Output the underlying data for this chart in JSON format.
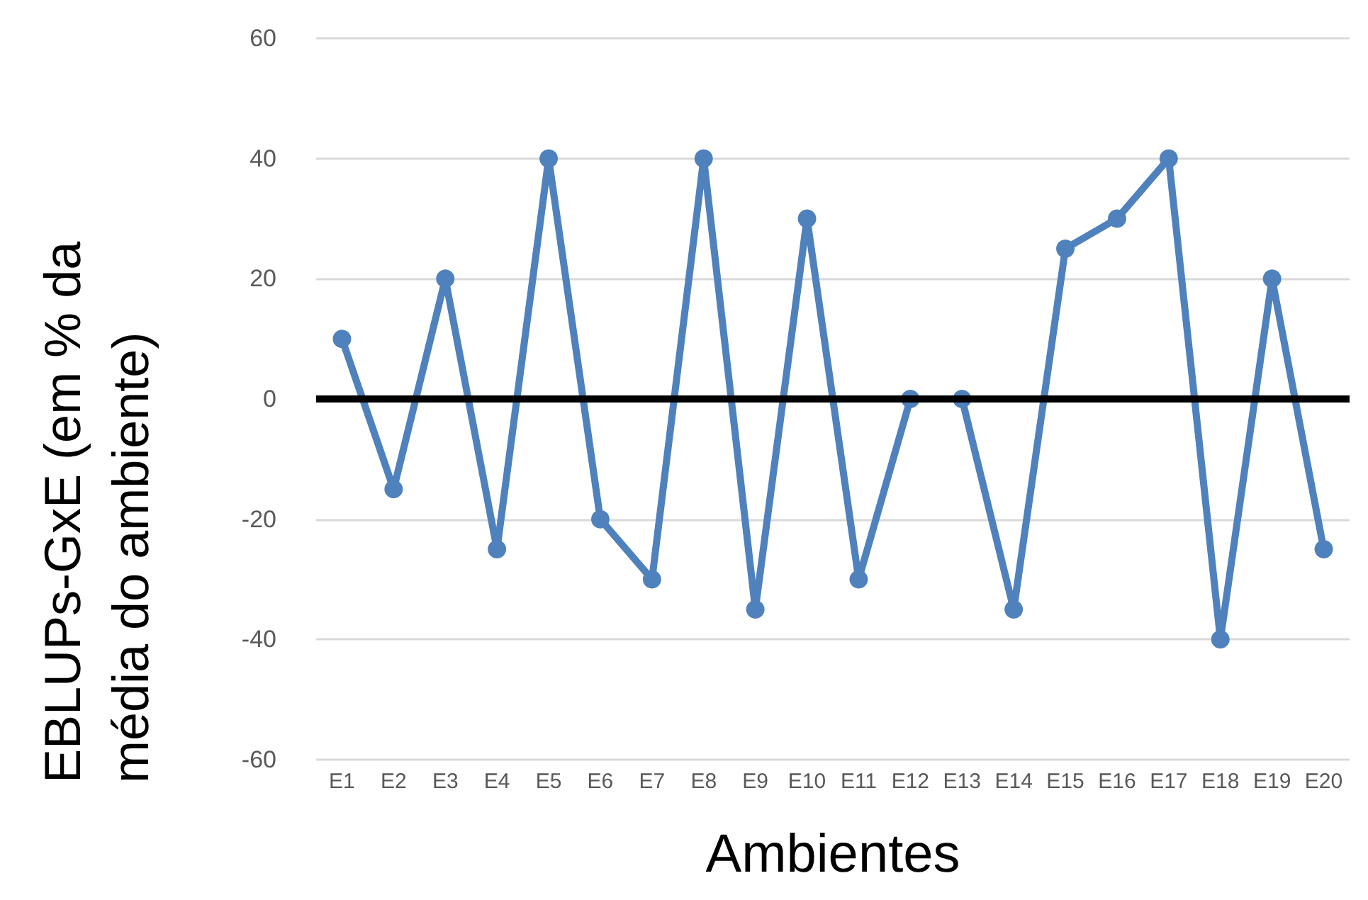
{
  "chart_data": {
    "type": "line",
    "xlabel": "Ambientes",
    "ylabel": "EBLUPs-GxE (em % da média do ambiente)",
    "categories": [
      "E1",
      "E2",
      "E3",
      "E4",
      "E5",
      "E6",
      "E7",
      "E8",
      "E9",
      "E10",
      "E11",
      "E12",
      "E13",
      "E14",
      "E15",
      "E16",
      "E17",
      "E18",
      "E19",
      "E20"
    ],
    "series": [
      {
        "color": "#4f81bd",
        "values": [
          10,
          -15,
          20,
          -25,
          40,
          -20,
          -30,
          40,
          -35,
          30,
          -30,
          0,
          0,
          -35,
          25,
          30,
          40,
          -40,
          20,
          -25
        ]
      }
    ],
    "ylim": [
      -60,
      60
    ],
    "yticks": [
      -60,
      -40,
      -20,
      0,
      20,
      40,
      60
    ],
    "grid": "y",
    "marker": "circle",
    "line_style": "solid",
    "ref_lines": [
      {
        "axis": "y",
        "value": 0,
        "color": "#000000"
      }
    ]
  }
}
